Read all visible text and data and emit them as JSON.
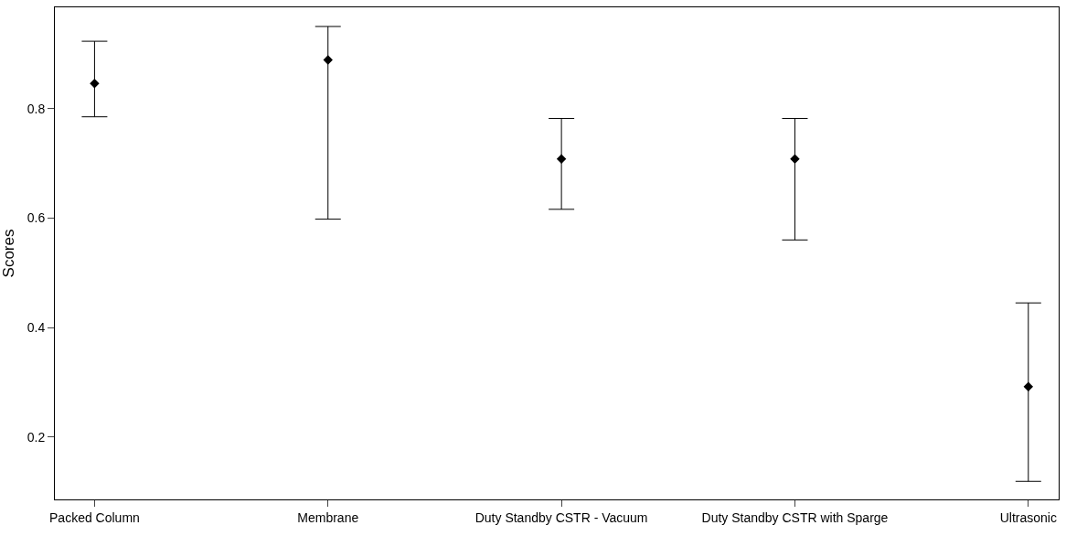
{
  "chart_data": {
    "type": "scatter",
    "ylabel": "Scores",
    "categories": [
      "Packed Column",
      "Membrane",
      "Duty Standby CSTR - Vacuum",
      "Duty Standby CSTR with Sparge",
      "Ultrasonic"
    ],
    "series": [
      {
        "color": "#000000",
        "values": [
          0.846,
          0.889,
          0.708,
          0.708,
          0.292
        ],
        "errors": [
          [
            0.785,
            0.923
          ],
          [
            0.598,
            0.95
          ],
          [
            0.616,
            0.782
          ],
          [
            0.56,
            0.782
          ],
          [
            0.119,
            0.445
          ]
        ]
      }
    ],
    "ylim": [
      0.086,
      0.985
    ],
    "yticks": [
      0.2,
      0.4,
      0.6,
      0.8
    ],
    "marker": "diamond"
  }
}
